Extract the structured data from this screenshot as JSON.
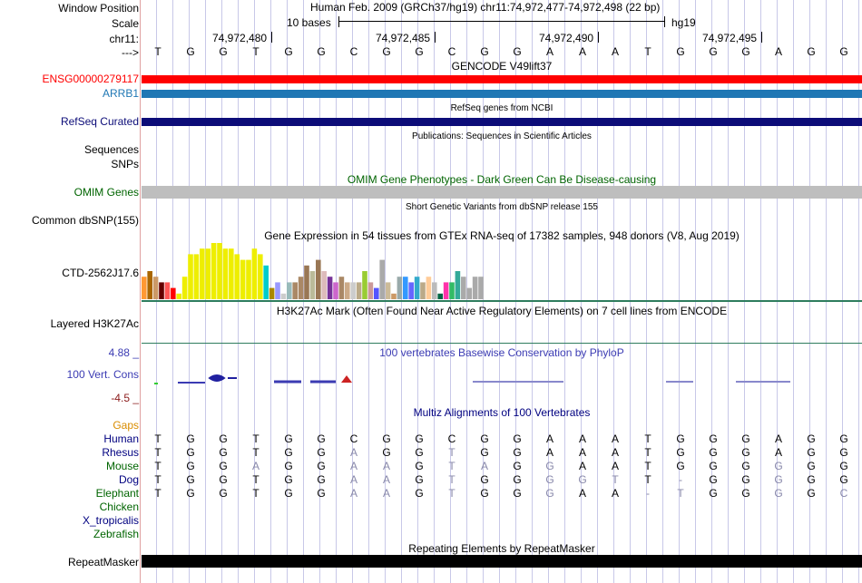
{
  "header": {
    "window_position_label": "Window Position",
    "scale_label": "Scale",
    "chrom_label": "chr11:",
    "strand_label": "--->",
    "assembly_text": "Human Feb. 2009 (GRCh37/hg19)   chr11:74,972,477-74,972,498 (22 bp)",
    "scale_text": "10 bases",
    "assembly_short": "hg19",
    "positions": [
      "74,972,480",
      "74,972,485",
      "74,972,490",
      "74,972,495"
    ]
  },
  "sequence": [
    "T",
    "G",
    "G",
    "T",
    "G",
    "G",
    "C",
    "G",
    "G",
    "C",
    "G",
    "G",
    "A",
    "A",
    "A",
    "T",
    "G",
    "G",
    "G",
    "A",
    "G",
    "G"
  ],
  "tracks": {
    "gencode": {
      "title": "GENCODE V49lift37",
      "genes": [
        {
          "name": "ENSG00000279117",
          "color": "#ff0000"
        },
        {
          "name": "ARRB1",
          "color": "#1f77b4"
        }
      ]
    },
    "refseq": {
      "title": "RefSeq genes from NCBI",
      "label": "RefSeq Curated",
      "color": "#0c0c78"
    },
    "publications": {
      "title": "Publications: Sequences in Scientific Articles",
      "labels": [
        "Sequences",
        "SNPs"
      ]
    },
    "omim": {
      "title": "OMIM Gene Phenotypes - Dark Green Can Be Disease-causing",
      "label": "OMIM Genes",
      "color": "#006400",
      "bar_color": "#bebebe"
    },
    "dbsnp": {
      "title": "Short Genetic Variants from dbSNP release 155",
      "label": "Common dbSNP(155)"
    },
    "gtex": {
      "title": "Gene Expression in 54 tissues from GTEx RNA-seq of 17382 samples, 948 donors (V8, Aug 2019)",
      "label": "CTD-2562J17.6",
      "chart_data": {
        "type": "bar",
        "values": [
          4,
          5,
          4,
          3,
          3,
          2,
          1,
          4,
          8,
          8,
          9,
          9,
          10,
          10,
          9,
          9,
          8,
          7,
          7,
          9,
          8,
          6,
          2,
          3,
          1,
          3,
          3,
          4,
          6,
          5,
          7,
          5,
          4,
          3,
          4,
          3,
          3,
          3,
          5,
          3,
          2,
          7,
          3,
          1,
          4,
          4,
          3,
          4,
          3,
          4,
          3,
          1,
          3,
          3,
          5,
          4,
          2,
          4,
          4
        ],
        "colors": [
          "#ff9933",
          "#aa6600",
          "#cc9966",
          "#660000",
          "#ff5555",
          "#ff0000",
          "#eeee00",
          "#eeee00",
          "#eeee00",
          "#eeee00",
          "#eeee00",
          "#eeee00",
          "#eeee00",
          "#eeee00",
          "#eeee00",
          "#eeee00",
          "#eeee00",
          "#eeee00",
          "#eeee00",
          "#eeee00",
          "#eeee00",
          "#00cccc",
          "#aa8800",
          "#9999ff",
          "#cccccc",
          "#99bbbb",
          "#aa8866",
          "#aa8866",
          "#997755",
          "#bbbb99",
          "#997755",
          "#ddbbbb",
          "#773399",
          "#cc66cc",
          "#aa8866",
          "#ccaa88",
          "#cccccc",
          "#bbaa88",
          "#99cc33",
          "#cc9999",
          "#5555ff",
          "#aaaaaa",
          "#ccbb99",
          "#cc9966",
          "#99aaaa",
          "#3399ff",
          "#6666ff",
          "#33aacc",
          "#bbaa88",
          "#ffcc99",
          "#bbbbbb",
          "#006644",
          "#ff33aa",
          "#33bb66",
          "#33aa99",
          "#aaaaaa",
          "#aaaaaa",
          "#aaaaaa",
          "#aaaaaa"
        ],
        "ylim": [
          0,
          10
        ]
      }
    },
    "h3k27ac": {
      "title": "H3K27Ac Mark (Often Found Near Active Regulatory Elements) on 7 cell lines from ENCODE",
      "label": "Layered H3K27Ac",
      "line_color": "#2e7d5e"
    },
    "conservation": {
      "title": "100 vertebrates Basewise Conservation by PhyloP",
      "label": "100 Vert. Cons",
      "y_max": "4.88 _",
      "y_min": "-4.5 _",
      "color": "#3b3bb3",
      "min_color": "#8b1a1a"
    },
    "multiz": {
      "title": "Multiz Alignments of 100 Vertebrates",
      "gaps_label": "Gaps",
      "species": [
        {
          "name": "Human",
          "color": "#000080",
          "bases": "TGGTGGCGGCGGAAATGGGAGG"
        },
        {
          "name": "Rhesus",
          "color": "#000080",
          "bases": "TGGTGGAGGTGGAAATGGGAGG"
        },
        {
          "name": "Mouse",
          "color": "#006400",
          "bases": "TGGAGGAAGTAGGAATGGGGGG"
        },
        {
          "name": "Dog",
          "color": "#000080",
          "bases": "TGGTGGAAGTGGGGTT-GGGGG"
        },
        {
          "name": "Elephant",
          "color": "#006400",
          "bases": "TGGTGGAAGTGGGAA-TGGGGC"
        },
        {
          "name": "Chicken",
          "color": "#006400",
          "bases": ""
        },
        {
          "name": "X_tropicalis",
          "color": "#000080",
          "bases": ""
        },
        {
          "name": "Zebrafish",
          "color": "#006400",
          "bases": ""
        }
      ],
      "mismatch_color": "#8888aa"
    },
    "repeatmasker": {
      "title": "Repeating Elements by RepeatMasker",
      "label": "RepeatMasker",
      "color": "#000000"
    }
  }
}
